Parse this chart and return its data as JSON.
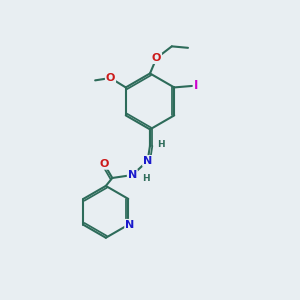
{
  "bg_color": "#e8eef2",
  "bond_color": "#2d6b5a",
  "atom_colors": {
    "N": "#1a1acc",
    "O": "#cc1a1a",
    "I": "#cc00cc",
    "H": "#2d6b5a"
  },
  "figsize": [
    3.0,
    3.0
  ],
  "dpi": 100
}
